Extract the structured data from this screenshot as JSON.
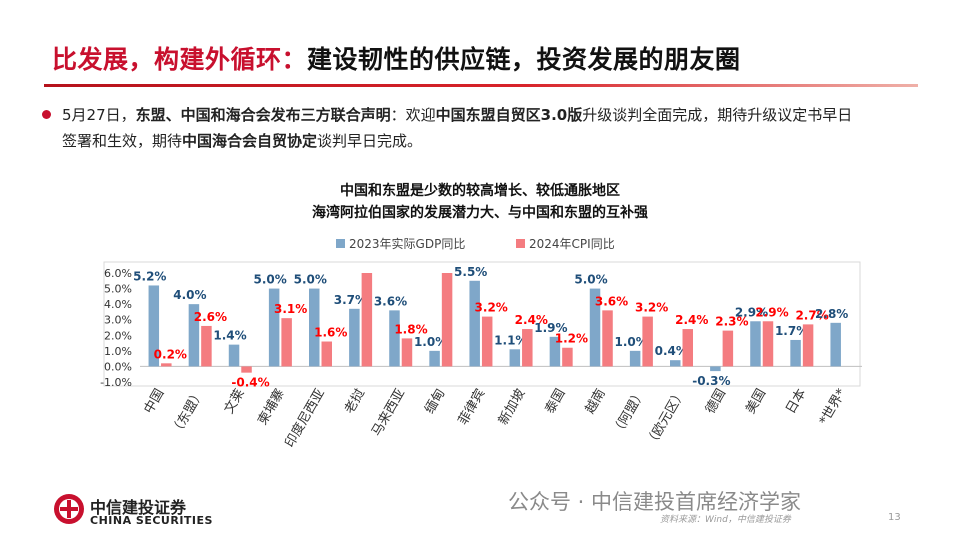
{
  "slide": {
    "title_accent": "比发展，构建外循环：",
    "title_rest": "建设韧性的供应链，投资发展的朋友圈",
    "bullet_p1": "5月27日，",
    "bullet_b1": "东盟、中国和海合会发布三方联合声明",
    "bullet_p2": "：欢迎",
    "bullet_b2": "中国东盟自贸区3.0版",
    "bullet_p3": "升级谈判全面完成，期待升级议定书早日签署和生效，期待",
    "bullet_b3": "中国海合会自贸协定",
    "bullet_p4": "谈判早日完成。"
  },
  "footer": {
    "logo_cn": "中信建投证券",
    "logo_en": "CHINA SECURITIES",
    "watermark": "公众号 · 中信建投首席经济学家",
    "source": "资料来源：Wind，中信建投证券",
    "page": "13"
  },
  "colors": {
    "gdp": "#7fa7c9",
    "cpi": "#f47c80",
    "gdp_label": "#1f4e79",
    "cpi_label": "#ff0000",
    "accent": "#c8102e"
  },
  "chart_data": {
    "type": "bar",
    "title": "中国和东盟是少数的较高增长、较低通胀地区",
    "subtitle": "海湾阿拉伯国家的发展潜力大、与中国和东盟的互补强",
    "categories": [
      "中国",
      "（东盟）",
      "文莱",
      "柬埔寨",
      "印度尼西亚",
      "老挝",
      "马来西亚",
      "缅甸",
      "菲律宾",
      "新加坡",
      "泰国",
      "越南",
      "（阿盟）",
      "（欧元区）",
      "德国",
      "美国",
      "日本",
      "*世界*"
    ],
    "series": [
      {
        "name": "2023年实际GDP同比",
        "values": [
          5.2,
          4.0,
          1.4,
          5.0,
          5.0,
          3.7,
          3.6,
          1.0,
          5.5,
          1.1,
          1.9,
          5.0,
          1.0,
          0.4,
          -0.3,
          2.9,
          1.7,
          2.8
        ],
        "labels": [
          "5.2%",
          "4.0%",
          "1.4%",
          "5.0%",
          "5.0%",
          "3.7%",
          "3.6%",
          "1.0%",
          "5.5%",
          "1.1%",
          "1.9%",
          "5.0%",
          "1.0%",
          "0.4%",
          "-0.3%",
          "2.9%",
          "1.7%",
          "2.8%"
        ]
      },
      {
        "name": "2024年CPI同比",
        "values": [
          0.2,
          2.6,
          -0.4,
          3.1,
          1.6,
          6.0,
          1.8,
          6.0,
          3.2,
          2.4,
          1.2,
          3.6,
          3.2,
          2.4,
          2.3,
          2.9,
          2.7,
          null
        ],
        "labels": [
          "0.2%",
          "2.6%",
          "-0.4%",
          "3.1%",
          "1.6%",
          "",
          "1.8%",
          "",
          "3.2%",
          "2.4%",
          "1.2%",
          "3.6%",
          "3.2%",
          "2.4%",
          "2.3%",
          "2.9%",
          "2.7%",
          ""
        ]
      }
    ],
    "ylim": [
      -1.0,
      6.0
    ],
    "yticks": [
      "6.0%",
      "5.0%",
      "4.0%",
      "3.0%",
      "2.0%",
      "1.0%",
      "0.0%",
      "-1.0%"
    ],
    "legend": "top-center",
    "grid": false
  }
}
